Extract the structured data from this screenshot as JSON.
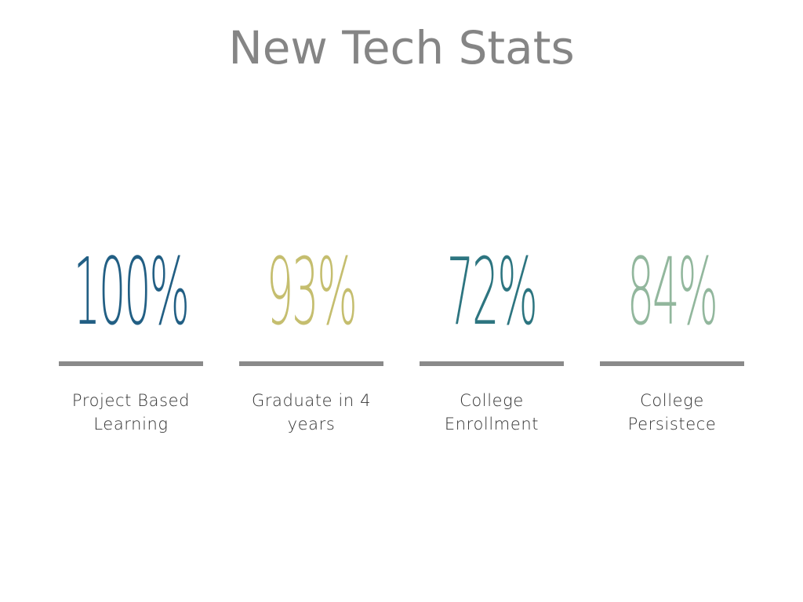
{
  "slide": {
    "title": "New Tech Stats",
    "stats": [
      {
        "value": "100%",
        "label_line1": "Project Based",
        "label_line2": "Learning",
        "color": "#225f84"
      },
      {
        "value": "93%",
        "label_line1": "Graduate in 4",
        "label_line2": "years",
        "color": "#c5be6f"
      },
      {
        "value": "72%",
        "label_line1": "College",
        "label_line2": "Enrollment",
        "color": "#2d7580"
      },
      {
        "value": "84%",
        "label_line1": "College",
        "label_line2": "Persistece",
        "color": "#92b79d"
      }
    ],
    "divider_color": "#8a8a8a",
    "title_color": "#858585"
  }
}
